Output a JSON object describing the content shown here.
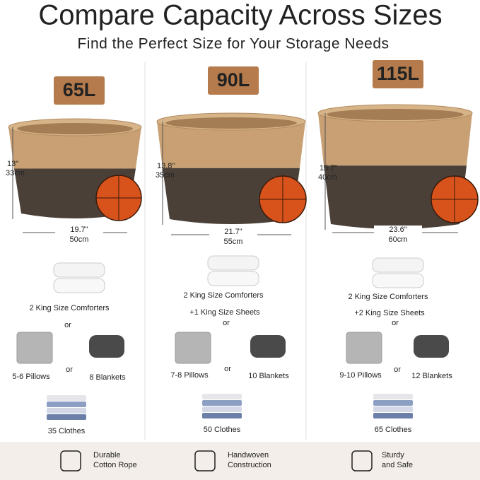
{
  "header": {
    "title": "Compare Capacity Across Sizes",
    "subtitle": "Find the Perfect Size for Your Storage Needs"
  },
  "columns": [
    {
      "size": "65L",
      "height": [
        "13\"",
        "33cm"
      ],
      "width": [
        "19.7\"",
        "50cm"
      ],
      "comforters": "2 King Size Comforters",
      "or_1": "or",
      "pillows": "5-6 Pillows",
      "or_2": "or",
      "blankets": "8 Blankets",
      "clothes": "35 Clothes"
    },
    {
      "size": "90L",
      "height": [
        "13.8\"",
        "35cm"
      ],
      "width": [
        "21.7\"",
        "55cm"
      ],
      "comforters": "2 King Size Comforters",
      "sheets": "+1 King Size Sheets",
      "or_1": "or",
      "pillows": "7-8 Pillows",
      "or_2": "or",
      "blankets": "10 Blankets",
      "clothes": "50 Clothes"
    },
    {
      "size": "115L",
      "height": [
        "15.7\"",
        "40cm"
      ],
      "width": [
        "23.6\"",
        "60cm"
      ],
      "comforters": "2 King Size Comforters",
      "sheets": "+2 King Size Sheets",
      "or_1": "or",
      "pillows": "9-10 Pillows",
      "or_2": "or",
      "blankets": "12 Blankets",
      "clothes": "65 Clothes"
    }
  ],
  "features": [
    {
      "lines": [
        "Durable",
        "Cotton Rope"
      ]
    },
    {
      "lines": [
        "Handwoven",
        "Construction"
      ]
    },
    {
      "lines": [
        "Sturdy",
        "and Safe"
      ]
    }
  ]
}
